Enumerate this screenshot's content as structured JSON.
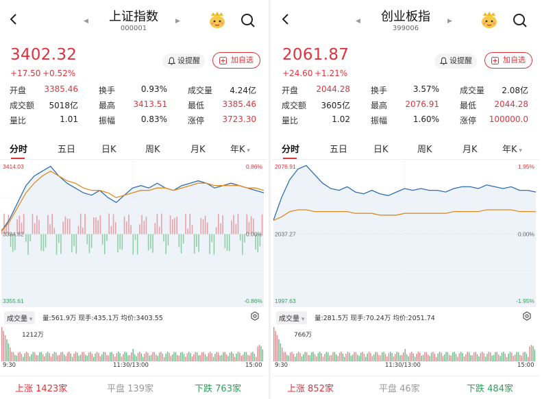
{
  "colors": {
    "up": "#e0323b",
    "down": "#2f9e5a",
    "line_price": "#2e6db3",
    "line_avg": "#e08a1e"
  },
  "panels": [
    {
      "title": "上证指数",
      "code": "000001",
      "price": "3402.32",
      "change": "+17.50",
      "change_pct": "+0.52%",
      "alert_label": "设提醒",
      "watch_label": "加自选",
      "stats": [
        [
          {
            "label": "开盘",
            "value": "3385.46",
            "color": "red"
          },
          {
            "label": "换手",
            "value": "0.93%",
            "color": "blk"
          },
          {
            "label": "成交量",
            "value": "4.24亿",
            "color": "blk"
          }
        ],
        [
          {
            "label": "成交额",
            "value": "5018亿",
            "color": "blk"
          },
          {
            "label": "最高",
            "value": "3413.51",
            "color": "red"
          },
          {
            "label": "最低",
            "value": "3385.46",
            "color": "red"
          }
        ],
        [
          {
            "label": "量比",
            "value": "1.01",
            "color": "blk"
          },
          {
            "label": "振幅",
            "value": "0.83%",
            "color": "blk"
          },
          {
            "label": "涨停",
            "value": "3723.30",
            "color": "red"
          }
        ]
      ],
      "tabs": [
        "分时",
        "五日",
        "日K",
        "周K",
        "月K",
        "年K"
      ],
      "y_top": "3414.03",
      "y_mid": "3384.82",
      "y_bot": "3355.61",
      "pct_top": "0.86%",
      "pct_mid": "0.00%",
      "pct_bot": "-0.86%",
      "vol_selector": "成交量",
      "vol_info": "量:561.9万  现手:435.1万  均价:3403.55",
      "vol_max": "1212万",
      "time_labels": [
        "9:30",
        "11:30/13:00",
        "15:00"
      ],
      "rise_label": "上涨",
      "rise_count": "1423家",
      "flat_label": "平盘",
      "flat_count": "139家",
      "fall_label": "下跌",
      "fall_count": "763家",
      "chart_data": {
        "type": "line",
        "x_label_start": "9:30",
        "x_label_mid": "11:30/13:00",
        "x_label_end": "15:00",
        "ylim": [
          3355.61,
          3414.03
        ],
        "prev_close": 3384.82,
        "series": [
          {
            "values": [
              3386,
              3391,
              3398,
              3405,
              3409,
              3411,
              3413,
              3409,
              3406,
              3404,
              3402,
              3401,
              3403,
              3400,
              3398,
              3401,
              3404,
              3405,
              3404,
              3406,
              3404,
              3403,
              3405,
              3406,
              3407,
              3406,
              3404,
              3405,
              3406,
              3405,
              3404,
              3403,
              3402
            ]
          },
          {
            "values": [
              3386,
              3390,
              3396,
              3402,
              3406,
              3409,
              3411,
              3409,
              3407,
              3406,
              3404,
              3403,
              3403,
              3402,
              3400,
              3401,
              3402,
              3403,
              3403,
              3404,
              3404,
              3403,
              3404,
              3405,
              3406,
              3406,
              3405,
              3405,
              3405,
              3405,
              3404,
              3404,
              3403
            ]
          }
        ],
        "volume_unit": "万",
        "volume_max": 1212
      }
    },
    {
      "title": "创业板指",
      "code": "399006",
      "price": "2061.87",
      "change": "+24.60",
      "change_pct": "+1.21%",
      "alert_label": "设提醒",
      "watch_label": "加自选",
      "stats": [
        [
          {
            "label": "开盘",
            "value": "2044.28",
            "color": "red"
          },
          {
            "label": "换手",
            "value": "3.57%",
            "color": "blk"
          },
          {
            "label": "成交量",
            "value": "2.08亿",
            "color": "blk"
          }
        ],
        [
          {
            "label": "成交额",
            "value": "3605亿",
            "color": "blk"
          },
          {
            "label": "最高",
            "value": "2076.91",
            "color": "red"
          },
          {
            "label": "最低",
            "value": "2044.28",
            "color": "red"
          }
        ],
        [
          {
            "label": "量比",
            "value": "1.02",
            "color": "blk"
          },
          {
            "label": "振幅",
            "value": "1.60%",
            "color": "blk"
          },
          {
            "label": "涨停",
            "value": "100000.0",
            "color": "red"
          }
        ]
      ],
      "tabs": [
        "分时",
        "五日",
        "日K",
        "周K",
        "月K",
        "年K"
      ],
      "y_top": "2076.91",
      "y_mid": "2037.27",
      "y_bot": "1997.63",
      "pct_top": "1.95%",
      "pct_mid": "0.00%",
      "pct_bot": "-1.95%",
      "vol_selector": "成交量",
      "vol_info": "量:281.5万  现手:70.24万  均价:2051.74",
      "vol_max": "766万",
      "time_labels": [
        "9:30",
        "11:30/13:00",
        "15:00"
      ],
      "rise_label": "上涨",
      "rise_count": "852家",
      "flat_label": "平盘",
      "flat_count": "46家",
      "fall_label": "下跌",
      "fall_count": "484家",
      "chart_data": {
        "type": "line",
        "ylim": [
          1997.63,
          2076.91
        ],
        "prev_close": 2037.27,
        "series": [
          {
            "values": [
              2045,
              2058,
              2068,
              2074,
              2076,
              2071,
              2066,
              2063,
              2062,
              2064,
              2061,
              2060,
              2062,
              2060,
              2059,
              2061,
              2063,
              2062,
              2063,
              2062,
              2062,
              2061,
              2063,
              2064,
              2064,
              2063,
              2065,
              2064,
              2063,
              2064,
              2062,
              2062,
              2061
            ]
          },
          {
            "values": [
              2045,
              2047,
              2050,
              2051,
              2051,
              2050,
              2050,
              2050,
              2050,
              2050,
              2049,
              2049,
              2049,
              2048,
              2048,
              2048,
              2049,
              2049,
              2049,
              2049,
              2049,
              2049,
              2050,
              2050,
              2050,
              2050,
              2051,
              2051,
              2051,
              2051,
              2050,
              2050,
              2050
            ]
          }
        ],
        "volume_unit": "万",
        "volume_max": 766
      }
    }
  ]
}
